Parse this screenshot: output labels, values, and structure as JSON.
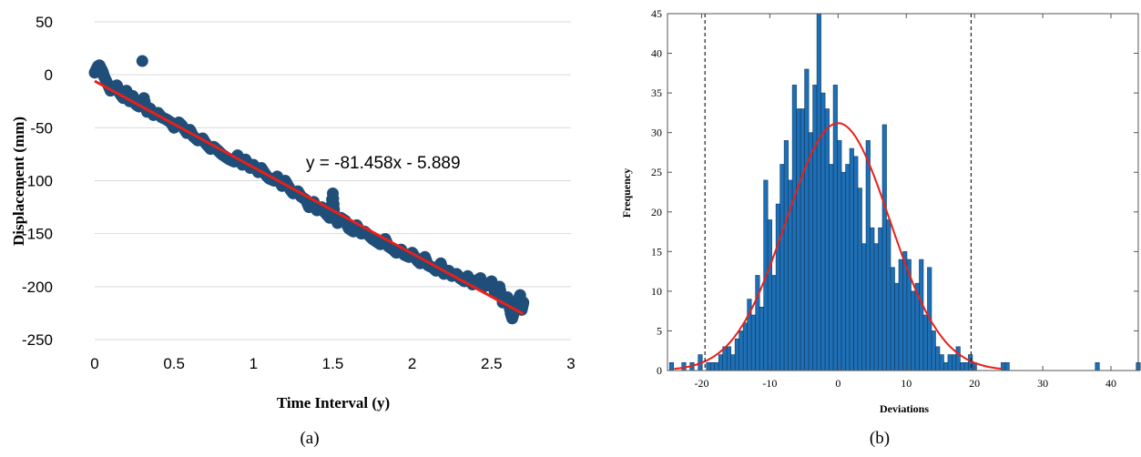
{
  "chart_data": [
    {
      "panel_label": "(a)",
      "type": "scatter",
      "title": "",
      "xlabel": "Time Interval (y)",
      "ylabel": "Displacement (mm)",
      "xlim": [
        0,
        3
      ],
      "ylim": [
        -250,
        50
      ],
      "x_ticks": [
        0,
        0.5,
        1,
        1.5,
        2,
        2.5,
        3
      ],
      "y_ticks": [
        50,
        0,
        -50,
        -100,
        -150,
        -200,
        -250
      ],
      "grid": "horizontal",
      "legend": "none",
      "annotation": "y = -81.458x - 5.889",
      "trendline": {
        "slope": -81.458,
        "intercept": -5.889,
        "x_range": [
          0,
          2.7
        ],
        "color": "#e8201a"
      },
      "marker_color": "#1f4e79",
      "series": [
        {
          "x": [
            0.0,
            0.02,
            0.03,
            0.05,
            0.06,
            0.08,
            0.1,
            0.12,
            0.14,
            0.16,
            0.18,
            0.2,
            0.22,
            0.24,
            0.26,
            0.28,
            0.3,
            0.31,
            0.33,
            0.35,
            0.37,
            0.4,
            0.42,
            0.45,
            0.48,
            0.5,
            0.53,
            0.55,
            0.58,
            0.6,
            0.62,
            0.65,
            0.68,
            0.7,
            0.73,
            0.75,
            0.78,
            0.8,
            0.83,
            0.85,
            0.88,
            0.9,
            0.93,
            0.95,
            0.98,
            1.0,
            1.03,
            1.05,
            1.08,
            1.1,
            1.13,
            1.15,
            1.18,
            1.2,
            1.23,
            1.25,
            1.28,
            1.3,
            1.33,
            1.35,
            1.38,
            1.4,
            1.43,
            1.45,
            1.48,
            1.5,
            1.51,
            1.53,
            1.55,
            1.58,
            1.6,
            1.63,
            1.65,
            1.68,
            1.7,
            1.73,
            1.75,
            1.78,
            1.8,
            1.83,
            1.85,
            1.88,
            1.9,
            1.93,
            1.95,
            1.98,
            2.0,
            2.03,
            2.05,
            2.08,
            2.1,
            2.13,
            2.15,
            2.18,
            2.2,
            2.23,
            2.25,
            2.28,
            2.3,
            2.33,
            2.35,
            2.38,
            2.4,
            2.43,
            2.45,
            2.48,
            2.5,
            2.52,
            2.55,
            2.57,
            2.6,
            2.62,
            2.63,
            2.65,
            2.66,
            2.67,
            2.68,
            2.69,
            2.7
          ],
          "y": [
            2,
            8,
            9,
            3,
            -2,
            -8,
            -15,
            -12,
            -10,
            -18,
            -22,
            -15,
            -25,
            -20,
            -28,
            -30,
            13,
            -22,
            -35,
            -32,
            -38,
            -36,
            -40,
            -42,
            -45,
            -50,
            -45,
            -48,
            -55,
            -52,
            -58,
            -62,
            -60,
            -65,
            -70,
            -68,
            -72,
            -75,
            -78,
            -80,
            -82,
            -76,
            -85,
            -80,
            -88,
            -85,
            -92,
            -88,
            -95,
            -98,
            -100,
            -96,
            -105,
            -100,
            -108,
            -112,
            -110,
            -115,
            -118,
            -125,
            -120,
            -128,
            -125,
            -130,
            -135,
            -112,
            -132,
            -140,
            -135,
            -138,
            -145,
            -148,
            -142,
            -150,
            -148,
            -152,
            -155,
            -158,
            -160,
            -155,
            -162,
            -165,
            -168,
            -165,
            -170,
            -172,
            -168,
            -175,
            -178,
            -172,
            -180,
            -182,
            -185,
            -178,
            -188,
            -185,
            -190,
            -188,
            -192,
            -195,
            -190,
            -198,
            -195,
            -192,
            -200,
            -198,
            -195,
            -205,
            -200,
            -215,
            -210,
            -225,
            -230,
            -220,
            -215,
            -212,
            -208,
            -222,
            -215
          ]
        }
      ]
    },
    {
      "panel_label": "(b)",
      "type": "bar",
      "title": "",
      "xlabel": "Deviations",
      "ylabel": "Frequency",
      "xlim": [
        -25,
        44
      ],
      "ylim": [
        0,
        45
      ],
      "x_ticks": [
        -20,
        -10,
        0,
        10,
        20,
        30,
        40
      ],
      "y_ticks": [
        0,
        5,
        10,
        15,
        20,
        25,
        30,
        35,
        40,
        45
      ],
      "grid": "off",
      "legend": "none",
      "bar_color": "#1f6fb5",
      "bin_width": 0.6,
      "bins": [
        -24.4,
        -22.6,
        -21.4,
        -20.2,
        -19.0,
        -18.4,
        -17.8,
        -17.2,
        -16.6,
        -16.0,
        -15.4,
        -14.8,
        -14.2,
        -13.6,
        -13.0,
        -12.4,
        -11.8,
        -11.2,
        -10.6,
        -10.0,
        -9.4,
        -8.8,
        -8.2,
        -7.6,
        -7.0,
        -6.4,
        -5.8,
        -5.2,
        -4.6,
        -4.0,
        -3.4,
        -2.8,
        -2.2,
        -1.6,
        -1.0,
        -0.4,
        0.2,
        0.8,
        1.4,
        2.0,
        2.6,
        3.2,
        3.8,
        4.4,
        5.0,
        5.6,
        6.2,
        6.8,
        7.4,
        8.0,
        8.6,
        9.2,
        9.8,
        10.4,
        11.0,
        11.6,
        12.2,
        12.8,
        13.4,
        14.0,
        14.6,
        15.2,
        15.8,
        16.4,
        17.0,
        17.6,
        18.2,
        18.8,
        19.4,
        20.0,
        24.2,
        24.8,
        38.0,
        44.0
      ],
      "frequencies": [
        1,
        1,
        1,
        2,
        1,
        1,
        1,
        2,
        3,
        3,
        2,
        4,
        5,
        6,
        9,
        7,
        12,
        8,
        24,
        19,
        12,
        21,
        26,
        29,
        24,
        36,
        33,
        33,
        38,
        30,
        36,
        45,
        35,
        33,
        26,
        36,
        29,
        25,
        26,
        28,
        27,
        23,
        16,
        29,
        18,
        16,
        18,
        31,
        19,
        13,
        11,
        14,
        15,
        14,
        10,
        11,
        14,
        7,
        13,
        5,
        3,
        2,
        1,
        2,
        2,
        3,
        1,
        1,
        2,
        1,
        1,
        1,
        1,
        1
      ],
      "normal_fit": {
        "mean": 0,
        "peak": 31.2,
        "sigma": 7.6,
        "color": "#e8201a"
      },
      "dashed_lines_x": [
        -19.5,
        19.5
      ]
    }
  ]
}
